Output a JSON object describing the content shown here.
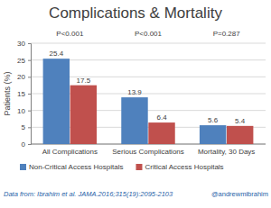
{
  "chart_data": {
    "type": "bar",
    "title": "Complications & Mortality",
    "y_label": "Patients (%)",
    "categories": [
      "All Complications",
      "Serious Complications",
      "Mortality, 30 Days"
    ],
    "series": [
      {
        "name": "Non-Critical Access Hospitals",
        "color": "#4f81bd",
        "values": [
          25.4,
          13.9,
          5.6
        ]
      },
      {
        "name": "Critical Access Hospitals",
        "color": "#c0504d",
        "values": [
          17.5,
          6.4,
          5.4
        ]
      }
    ],
    "annotations": [
      "P<0.001",
      "P<0.001",
      "P=0.287"
    ],
    "ylim": [
      0,
      30
    ],
    "yticks": [
      0,
      5,
      10,
      15,
      20,
      25,
      30
    ],
    "grid": true,
    "data_labels": true,
    "legend": "bottom",
    "source": "Data from: Ibrahim  et al. JAMA.2016;315(19):2095-2103",
    "credit": "@andrewmibrahim"
  }
}
